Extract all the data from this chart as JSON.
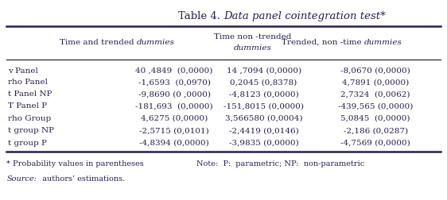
{
  "title_normal": "Table 4. ",
  "title_italic": "Data panel cointegration test*",
  "col2_header_normal": "Time and trended ",
  "col2_header_italic": "dummies",
  "col3_header_line1": "Time non -trended",
  "col3_header_line2": "dummies",
  "col4_header_normal": "Trended, non -time ",
  "col4_header_italic": "dummies",
  "rows": [
    [
      "v Panel",
      "40 ,4849  (0,0000)",
      "14 ,7094 (0,0000)",
      "-8,0670 (0,0000)"
    ],
    [
      "rho Panel",
      "-1,6593  (0,0970)",
      "0,2045 (0,8378)",
      "4,7891 (0,0000)"
    ],
    [
      "t Panel NP",
      "-9,8690 (0 ,0000)",
      "-4,8123 (0,0000)",
      "2,7324  (0,0062)"
    ],
    [
      "T Panel P",
      "-181,693  (0,0000)",
      "-151,8015 (0,0000)",
      "-439,565 (0,0000)"
    ],
    [
      "rho Group",
      "4,6275 (0,0000)",
      "3,566580 (0,0004)",
      "5,0845  (0,0000)"
    ],
    [
      "t group NP",
      "-2,5715 (0,0101)",
      "-2,4419 (0,0146)",
      "-2,186 (0,0287)"
    ],
    [
      "t group P",
      "-4,8394 (0,0000)",
      "-3,9835 (0,0000)",
      "-4,7569 (0,0000)"
    ]
  ],
  "footnote1": "* Probability values in parentheses",
  "source_italic": "Source:",
  "source_normal": "  authors’ estimations.",
  "note": "Note:  P:  parametric; NP:  non-parametric",
  "bg_color": "#ffffff",
  "text_color": "#2b1d4e",
  "line_color": "#2b1d4e",
  "figsize": [
    5.62,
    2.53
  ],
  "dpi": 100,
  "title_fontsize": 9.5,
  "header_fontsize": 7.5,
  "data_fontsize": 7.5,
  "foot_fontsize": 7.0
}
